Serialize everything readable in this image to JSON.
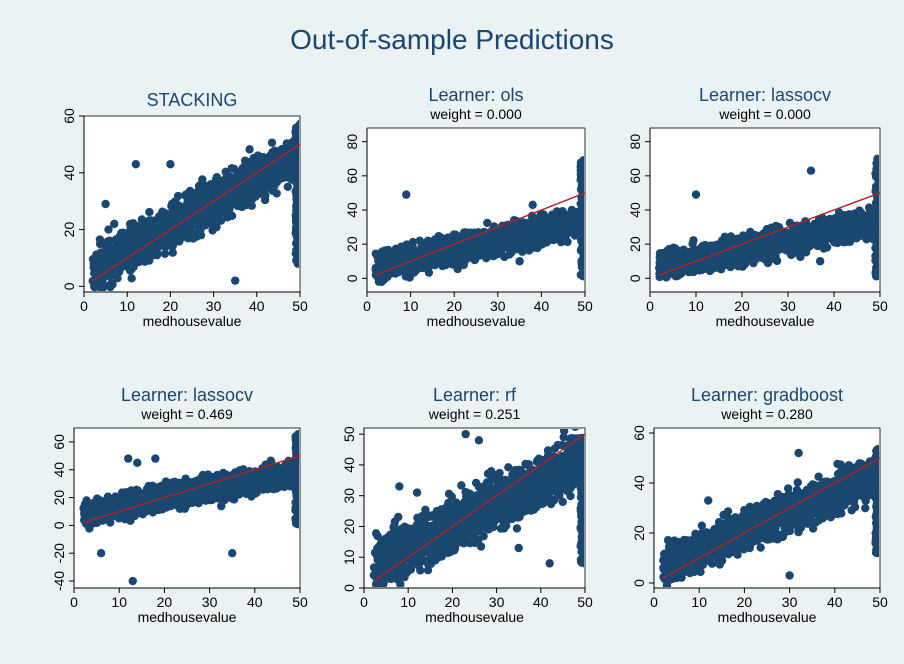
{
  "figure": {
    "title": "Out-of-sample Predictions",
    "background": "#eaf2f3",
    "title_color": "#1a476f",
    "marker_color": "#1a476f",
    "line_color": "#b22222"
  },
  "chart_data": [
    {
      "type": "scatter",
      "title": "STACKING",
      "subtitle": "",
      "xlabel": "medhousevalue",
      "ylabel": "",
      "xlim": [
        0,
        50
      ],
      "ylim": [
        -2,
        60
      ],
      "xticks": [
        0,
        10,
        20,
        30,
        40,
        50
      ],
      "yticks": [
        0,
        20,
        40,
        60
      ],
      "fit_line": [
        [
          2,
          2
        ],
        [
          50,
          50
        ]
      ],
      "cloud": {
        "slope": 0.85,
        "intercept": 4,
        "spread": 5.5,
        "cap_low": 8,
        "cap_high": 58
      },
      "outliers": [
        [
          35,
          2
        ],
        [
          49.5,
          8
        ],
        [
          12,
          43
        ],
        [
          20,
          43
        ],
        [
          5,
          29
        ],
        [
          7,
          22
        ]
      ],
      "grid": false,
      "legend": "none"
    },
    {
      "type": "scatter",
      "title": "Learner: ols",
      "subtitle": "weight = 0.000",
      "xlabel": "medhousevalue",
      "ylabel": "",
      "xlim": [
        0,
        50
      ],
      "ylim": [
        -8,
        88
      ],
      "xticks": [
        0,
        10,
        20,
        30,
        40,
        50
      ],
      "yticks": [
        0,
        20,
        40,
        60,
        80
      ],
      "fit_line": [
        [
          2,
          2
        ],
        [
          50,
          50
        ]
      ],
      "cloud": {
        "slope": 0.55,
        "intercept": 6,
        "spread": 6,
        "cap_low": 0,
        "cap_high": 70
      },
      "outliers": [
        [
          9,
          49
        ],
        [
          2,
          6
        ],
        [
          35,
          10
        ],
        [
          38,
          43
        ],
        [
          49.5,
          2
        ]
      ],
      "grid": false,
      "legend": "none"
    },
    {
      "type": "scatter",
      "title": "Learner: lassocv",
      "subtitle": "weight = 0.000",
      "xlabel": "medhousevalue",
      "ylabel": "",
      "xlim": [
        0,
        50
      ],
      "ylim": [
        -8,
        88
      ],
      "xticks": [
        0,
        10,
        20,
        30,
        40,
        50
      ],
      "yticks": [
        0,
        20,
        40,
        60,
        80
      ],
      "fit_line": [
        [
          2,
          2
        ],
        [
          50,
          50
        ]
      ],
      "cloud": {
        "slope": 0.55,
        "intercept": 6,
        "spread": 6,
        "cap_low": 0,
        "cap_high": 70
      },
      "outliers": [
        [
          10,
          49
        ],
        [
          35,
          63
        ],
        [
          2,
          6
        ],
        [
          37,
          10
        ],
        [
          49.5,
          2
        ]
      ],
      "grid": false,
      "legend": "none"
    },
    {
      "type": "scatter",
      "title": "Learner: lassocv",
      "subtitle": "weight = 0.469",
      "xlabel": "medhousevalue",
      "ylabel": "",
      "xlim": [
        0,
        50
      ],
      "ylim": [
        -45,
        70
      ],
      "xticks": [
        0,
        10,
        20,
        30,
        40,
        50
      ],
      "yticks": [
        -40,
        -20,
        0,
        20,
        40,
        60
      ],
      "fit_line": [
        [
          2,
          2
        ],
        [
          50,
          50
        ]
      ],
      "cloud": {
        "slope": 0.6,
        "intercept": 8,
        "spread": 6.5,
        "cap_low": 0,
        "cap_high": 66
      },
      "outliers": [
        [
          13,
          -40
        ],
        [
          35,
          -20
        ],
        [
          6,
          -20
        ],
        [
          12,
          48
        ],
        [
          14,
          45
        ],
        [
          18,
          48
        ],
        [
          49.5,
          1
        ]
      ],
      "grid": false,
      "legend": "none"
    },
    {
      "type": "scatter",
      "title": "Learner: rf",
      "subtitle": "weight = 0.251",
      "xlabel": "medhousevalue",
      "ylabel": "",
      "xlim": [
        0,
        50
      ],
      "ylim": [
        0,
        52
      ],
      "xticks": [
        0,
        10,
        20,
        30,
        40,
        50
      ],
      "yticks": [
        0,
        10,
        20,
        30,
        40,
        50
      ],
      "fit_line": [
        [
          2,
          2
        ],
        [
          50,
          50
        ]
      ],
      "cloud": {
        "slope": 0.72,
        "intercept": 6,
        "spread": 6,
        "cap_low": 8,
        "cap_high": 49
      },
      "outliers": [
        [
          23,
          50
        ],
        [
          26,
          48
        ],
        [
          8,
          33
        ],
        [
          12,
          31
        ],
        [
          35,
          13
        ],
        [
          42,
          8
        ]
      ],
      "grid": false,
      "legend": "none"
    },
    {
      "type": "scatter",
      "title": "Learner: gradboost",
      "subtitle": "weight = 0.280",
      "xlabel": "medhousevalue",
      "ylabel": "",
      "xlim": [
        0,
        50
      ],
      "ylim": [
        -2,
        62
      ],
      "xticks": [
        0,
        10,
        20,
        30,
        40,
        50
      ],
      "yticks": [
        0,
        20,
        40,
        60
      ],
      "fit_line": [
        [
          2,
          2
        ],
        [
          50,
          50
        ]
      ],
      "cloud": {
        "slope": 0.78,
        "intercept": 5,
        "spread": 5.5,
        "cap_low": 12,
        "cap_high": 54
      },
      "outliers": [
        [
          32,
          52
        ],
        [
          30,
          3
        ],
        [
          12,
          33
        ],
        [
          5,
          2
        ],
        [
          49.5,
          12
        ]
      ],
      "grid": false,
      "legend": "none"
    }
  ]
}
